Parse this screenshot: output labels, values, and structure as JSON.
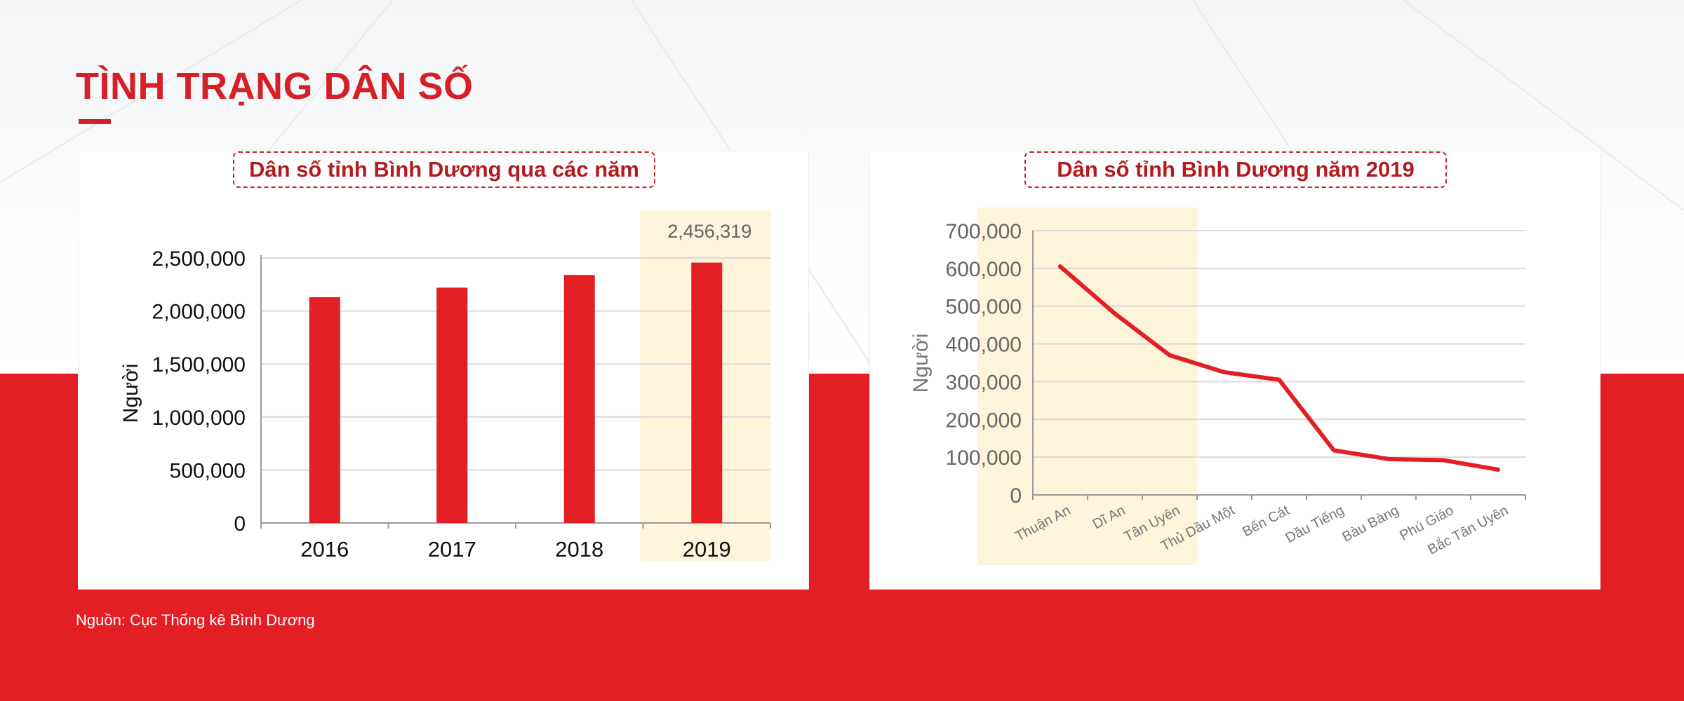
{
  "page": {
    "title": "TÌNH TRẠNG DÂN SỐ",
    "source": "Nguồn: Cục Thống kê Bình Dương",
    "colors": {
      "accent": "#e31e25",
      "title": "#d61f26",
      "highlight": "#fdf4d9"
    }
  },
  "chart_data": [
    {
      "type": "bar",
      "title": "Dân số tỉnh Bình Dương qua các năm",
      "ylabel": "Người",
      "categories": [
        "2016",
        "2017",
        "2018",
        "2019"
      ],
      "values": [
        2130000,
        2220000,
        2340000,
        2456319
      ],
      "ylim": [
        0,
        2500000
      ],
      "yticks": [
        "0",
        "500,000",
        "1,000,000",
        "1,500,000",
        "2,000,000",
        "2,500,000"
      ],
      "highlight_category": "2019",
      "annotation": "2,456,319",
      "grid": true,
      "bar_color": "#e31e25"
    },
    {
      "type": "line",
      "title": "Dân số tỉnh Bình Dương năm 2019",
      "ylabel": "Người",
      "categories": [
        "Thuận An",
        "Dĩ An",
        "Tân Uyên",
        "Thủ Dầu Một",
        "Bến Cát",
        "Dầu Tiếng",
        "Bàu Bàng",
        "Phú Giáo",
        "Bắc Tân Uyên"
      ],
      "values": [
        605000,
        480000,
        370000,
        325000,
        305000,
        118000,
        95000,
        92000,
        67000
      ],
      "ylim": [
        0,
        700000
      ],
      "yticks": [
        "0",
        "100,000",
        "200,000",
        "300,000",
        "400,000",
        "500,000",
        "600,000",
        "700,000"
      ],
      "highlight_range": [
        "Thuận An",
        "Tân Uyên"
      ],
      "grid": true,
      "line_color": "#e31e25"
    }
  ]
}
